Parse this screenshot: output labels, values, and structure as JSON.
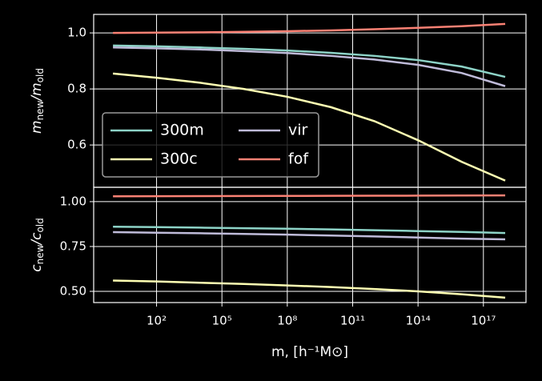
{
  "chart_data": [
    {
      "type": "line",
      "ylabel": [
        {
          "text": "m"
        },
        {
          "text": "new",
          "sub": true
        },
        {
          "text": "/m"
        },
        {
          "text": "old",
          "sub": true
        }
      ],
      "x": [
        1,
        100,
        10000,
        1000000,
        100000000,
        10000000000,
        1000000000000,
        100000000000000,
        10000000000000000,
        1000000000000000000
      ],
      "ylim": [
        0.449,
        1.066
      ],
      "yticks": [
        {
          "value": 0.6,
          "label": "0.6"
        },
        {
          "value": 0.8,
          "label": "0.8"
        },
        {
          "value": 1.0,
          "label": "1.0"
        }
      ],
      "grid": true,
      "legend": "lower left",
      "legend_columns": 2,
      "series": [
        {
          "name": "300m",
          "color": "#8dd3c7",
          "values": [
            0.955,
            0.952,
            0.948,
            0.943,
            0.937,
            0.929,
            0.918,
            0.903,
            0.88,
            0.843
          ]
        },
        {
          "name": "300c",
          "color": "#feffb3",
          "values": [
            0.855,
            0.84,
            0.822,
            0.8,
            0.772,
            0.735,
            0.685,
            0.617,
            0.54,
            0.473
          ]
        },
        {
          "name": "vir",
          "color": "#bfbbd9",
          "values": [
            0.948,
            0.945,
            0.941,
            0.935,
            0.928,
            0.918,
            0.905,
            0.886,
            0.857,
            0.81
          ]
        },
        {
          "name": "fof",
          "color": "#fa8174",
          "values": [
            1.0,
            1.001,
            1.002,
            1.004,
            1.006,
            1.009,
            1.013,
            1.018,
            1.024,
            1.032
          ]
        }
      ]
    },
    {
      "type": "line",
      "ylabel": [
        {
          "text": "c"
        },
        {
          "text": "new",
          "sub": true
        },
        {
          "text": "/c"
        },
        {
          "text": "old",
          "sub": true
        }
      ],
      "xlabel": "m, [h⁻¹M⊙]",
      "log_x": true,
      "x": [
        1,
        100,
        10000,
        1000000,
        100000000,
        10000000000,
        1000000000000,
        100000000000000,
        10000000000000000,
        1000000000000000000
      ],
      "xlim": [
        0.13,
        9e+18
      ],
      "xticks": [
        {
          "value": 100,
          "label": "10²"
        },
        {
          "value": 100000,
          "label": "10⁵"
        },
        {
          "value": 100000000,
          "label": "10⁸"
        },
        {
          "value": 100000000000,
          "label": "10¹¹"
        },
        {
          "value": 100000000000000,
          "label": "10¹⁴"
        },
        {
          "value": 100000000000000000,
          "label": "10¹⁷"
        }
      ],
      "ylim": [
        0.4375,
        1.08
      ],
      "yticks": [
        {
          "value": 0.5,
          "label": "0.50"
        },
        {
          "value": 0.75,
          "label": "0.75"
        },
        {
          "value": 1.0,
          "label": "1.00"
        }
      ],
      "grid": true,
      "series": [
        {
          "color": "#8dd3c7",
          "values": [
            0.86,
            0.858,
            0.855,
            0.852,
            0.849,
            0.845,
            0.841,
            0.836,
            0.831,
            0.825
          ]
        },
        {
          "color": "#feffb3",
          "values": [
            0.56,
            0.555,
            0.548,
            0.541,
            0.533,
            0.524,
            0.513,
            0.5,
            0.484,
            0.465
          ]
        },
        {
          "color": "#bfbbd9",
          "values": [
            0.83,
            0.827,
            0.824,
            0.82,
            0.816,
            0.811,
            0.806,
            0.8,
            0.794,
            0.79
          ]
        },
        {
          "color": "#fa8174",
          "values": [
            1.03,
            1.0305,
            1.031,
            1.0315,
            1.032,
            1.0325,
            1.033,
            1.0335,
            1.034,
            1.035
          ]
        }
      ]
    }
  ]
}
